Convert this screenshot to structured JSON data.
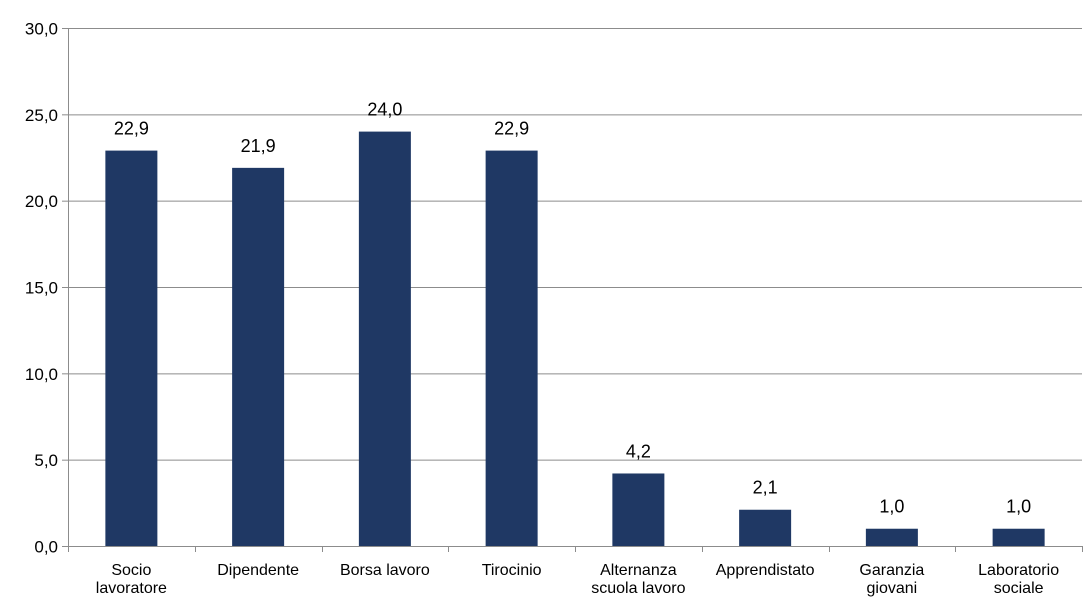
{
  "chart_data": {
    "type": "bar",
    "categories": [
      [
        "Socio",
        "lavoratore"
      ],
      [
        "Dipendente"
      ],
      [
        "Borsa lavoro"
      ],
      [
        "Tirocinio"
      ],
      [
        "Alternanza",
        "scuola lavoro"
      ],
      [
        "Apprendistato"
      ],
      [
        "Garanzia",
        "giovani"
      ],
      [
        "Laboratorio",
        "sociale"
      ]
    ],
    "values": [
      22.9,
      21.9,
      24.0,
      22.9,
      4.2,
      2.1,
      1.0,
      1.0
    ],
    "data_labels": [
      "22,9",
      "21,9",
      "24,0",
      "22,9",
      "4,2",
      "2,1",
      "1,0",
      "1,0"
    ],
    "ylim": [
      0,
      30
    ],
    "yticks": [
      0,
      5,
      10,
      15,
      20,
      25,
      30
    ],
    "ytick_labels": [
      "0,0",
      "5,0",
      "10,0",
      "15,0",
      "20,0",
      "25,0",
      "30,0"
    ],
    "title": "",
    "xlabel": "",
    "ylabel": "",
    "grid": true,
    "legend": "none",
    "colors": {
      "bar": "#1f3864",
      "grid": "#8c8c8c",
      "axis": "#8c8c8c"
    }
  }
}
